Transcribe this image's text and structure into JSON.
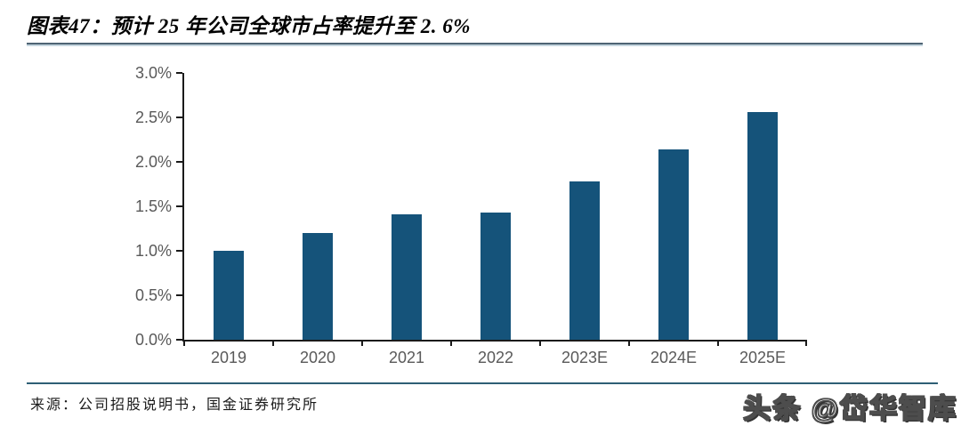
{
  "header": {
    "title": "图表47：预计 25 年公司全球市占率提升至 2. 6%"
  },
  "chart_data": {
    "type": "bar",
    "title": "图表47：预计 25 年公司全球市占率提升至 2. 6%",
    "figure_label": "图表47",
    "categories": [
      "2019",
      "2020",
      "2021",
      "2022",
      "2023E",
      "2024E",
      "2025E"
    ],
    "values": [
      1.0,
      1.2,
      1.41,
      1.43,
      1.78,
      2.14,
      2.56
    ],
    "unit": "%",
    "xlabel": "",
    "ylabel": "",
    "ylim": [
      0,
      3.0
    ],
    "ytick_step": 0.5,
    "y_tick_labels": [
      "0.0%",
      "0.5%",
      "1.0%",
      "1.5%",
      "2.0%",
      "2.5%",
      "3.0%"
    ],
    "grid": false,
    "legend": "none",
    "bar_color": "#15537A",
    "axis_color": "#1a1a1a",
    "tick_label_color": "#595959"
  },
  "footer": {
    "source": "来源：公司招股说明书，国金证券研究所"
  },
  "watermark": {
    "text": "头条 @岱华智库"
  }
}
